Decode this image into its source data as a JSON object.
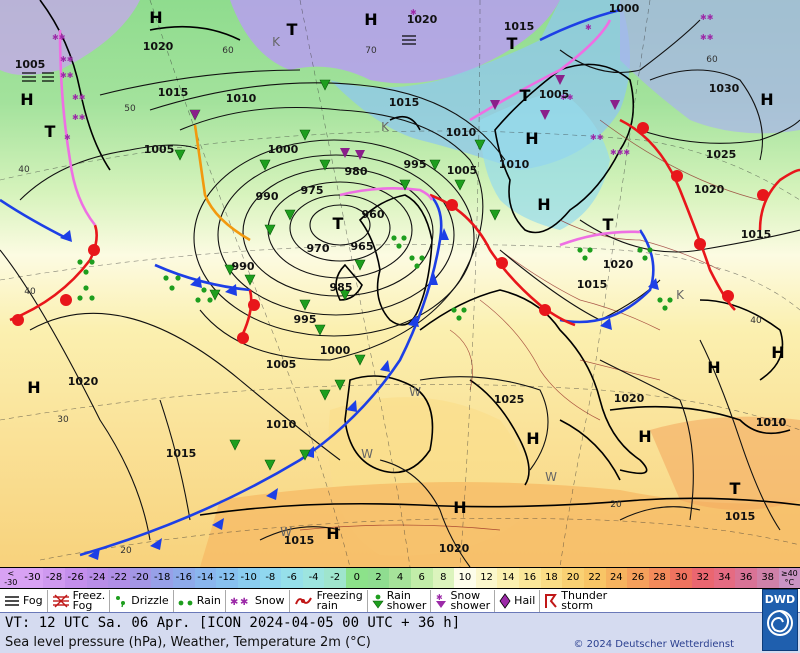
{
  "colorbar": {
    "first": "<\n-30",
    "last": "≥40\n°C",
    "cells": [
      {
        "label": "-30",
        "color": "#d8a2f4"
      },
      {
        "label": "-28",
        "color": "#cf99f0"
      },
      {
        "label": "-26",
        "color": "#c48fec"
      },
      {
        "label": "-24",
        "color": "#b98ee8"
      },
      {
        "label": "-22",
        "color": "#b08fe6"
      },
      {
        "label": "-20",
        "color": "#a396e5"
      },
      {
        "label": "-18",
        "color": "#97a0e8"
      },
      {
        "label": "-16",
        "color": "#8eaaea"
      },
      {
        "label": "-14",
        "color": "#8ab6ee"
      },
      {
        "label": "-12",
        "color": "#88c1f0"
      },
      {
        "label": "-10",
        "color": "#8bcdf0"
      },
      {
        "label": "-8",
        "color": "#90d7ef"
      },
      {
        "label": "-6",
        "color": "#96e0ea"
      },
      {
        "label": "-4",
        "color": "#9de5df"
      },
      {
        "label": "-2",
        "color": "#9fe5cd"
      },
      {
        "label": "0",
        "color": "#8ce28a"
      },
      {
        "label": "2",
        "color": "#8fdd90"
      },
      {
        "label": "4",
        "color": "#a6e39a"
      },
      {
        "label": "6",
        "color": "#c2eda9"
      },
      {
        "label": "8",
        "color": "#dcf4bd"
      },
      {
        "label": "10",
        "color": "#fdfdea"
      },
      {
        "label": "12",
        "color": "#fbf7cc"
      },
      {
        "label": "14",
        "color": "#fbf0b0"
      },
      {
        "label": "16",
        "color": "#fbe79a"
      },
      {
        "label": "18",
        "color": "#fadd86"
      },
      {
        "label": "20",
        "color": "#f9d173"
      },
      {
        "label": "22",
        "color": "#f8c566"
      },
      {
        "label": "24",
        "color": "#f6b35f"
      },
      {
        "label": "26",
        "color": "#f5a05c"
      },
      {
        "label": "28",
        "color": "#f38b5b"
      },
      {
        "label": "30",
        "color": "#ef735f"
      },
      {
        "label": "32",
        "color": "#ea6670"
      },
      {
        "label": "34",
        "color": "#e56b82"
      },
      {
        "label": "36",
        "color": "#d97396"
      },
      {
        "label": "38",
        "color": "#cf81a9"
      }
    ],
    "last_color": "#c993c4"
  },
  "legend": [
    {
      "icon": "fog-icon",
      "label": "Fog"
    },
    {
      "icon": "freezing-fog-icon",
      "label": "Freez.\nFog"
    },
    {
      "icon": "drizzle-icon",
      "label": "Drizzle"
    },
    {
      "icon": "rain-icon",
      "label": "Rain"
    },
    {
      "icon": "snow-icon",
      "label": "Snow"
    },
    {
      "icon": "freezing-rain-icon",
      "label": "Freezing\nrain"
    },
    {
      "icon": "rain-shower-icon",
      "label": "Rain\nshower"
    },
    {
      "icon": "snow-shower-icon",
      "label": "Snow\nshower"
    },
    {
      "icon": "hail-icon",
      "label": "Hail"
    },
    {
      "icon": "thunderstorm-icon",
      "label": "Thunder\nstorm"
    }
  ],
  "footer": {
    "valid_time": "VT: 12 UTC Sa.  06 Apr. [ICON 2024-04-05  00 UTC + 36 h]",
    "parameters": "Sea level pressure (hPa), Weather, Temperature 2m (°C)",
    "copyright": "© 2024 Deutscher Wetterdienst",
    "logo_text": "DWD"
  },
  "map": {
    "pressure_labels": [
      "1020",
      "1005",
      "1015",
      "1010",
      "1005",
      "1000",
      "990",
      "975",
      "980",
      "995",
      "1005",
      "960",
      "970",
      "965",
      "985",
      "990",
      "995",
      "1000",
      "1005",
      "1010",
      "1020",
      "1015",
      "1020",
      "1015",
      "1010",
      "1015",
      "1010",
      "1005",
      "1015",
      "1020",
      "1000",
      "1030",
      "1025",
      "1020",
      "1015",
      "1010",
      "1025",
      "1020",
      "1010",
      "1015",
      "1020",
      "1015"
    ],
    "high_markers": [
      "H",
      "H",
      "H",
      "H",
      "H",
      "H",
      "H",
      "H",
      "H",
      "H",
      "H",
      "H",
      "H"
    ],
    "low_markers": [
      "T",
      "T",
      "T",
      "T",
      "T",
      "T",
      "T"
    ],
    "temperature_field_labels": [
      "K",
      "K",
      "W",
      "W",
      "W",
      "W",
      "K"
    ],
    "latitude_labels": [
      "40",
      "50",
      "60",
      "70",
      "40",
      "30",
      "20",
      "20",
      "40",
      "60"
    ]
  }
}
